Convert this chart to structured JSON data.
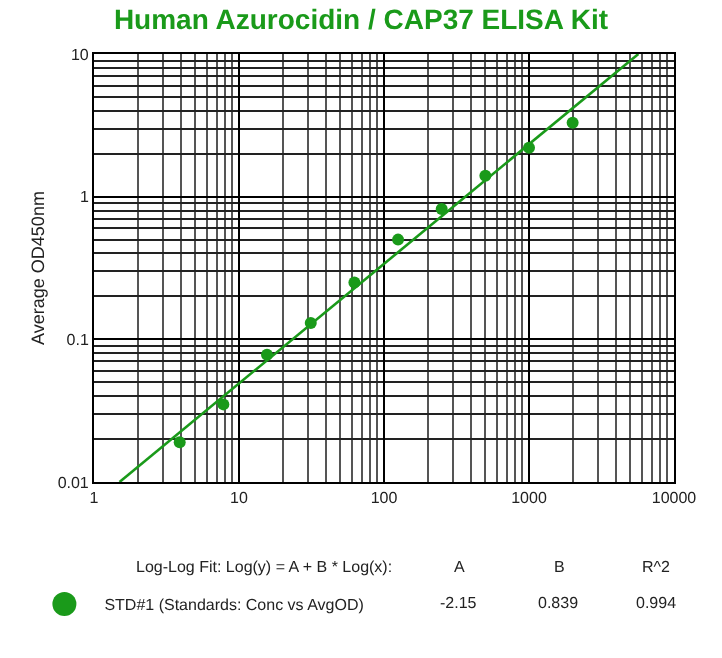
{
  "chart_data": {
    "type": "scatter",
    "title": "Human Azurocidin / CAP37 ELISA Kit",
    "ylabel": "Average OD450nm",
    "log": "xy",
    "grid": true,
    "legend": "bottom",
    "xlim": [
      1,
      10000
    ],
    "xticks": [
      1,
      10,
      100,
      1000,
      10000
    ],
    "ylim": [
      0.01,
      10
    ],
    "yticks": [
      0.01,
      0.1,
      1,
      10
    ],
    "series": [
      {
        "name": "STD#1 (Standards: Conc vs AvgOD)",
        "color": "#1a9a1a",
        "marker": "circle",
        "x": [
          3.9,
          7.8,
          15.6,
          31.25,
          62.5,
          125,
          250,
          500,
          1000,
          2000
        ],
        "values": [
          0.019,
          0.035,
          0.078,
          0.13,
          0.25,
          0.5,
          0.82,
          1.4,
          2.2,
          3.3
        ]
      },
      {
        "type": "line",
        "marker": "none",
        "color": "#1a9a1a",
        "x": [
          1.5,
          5680
        ],
        "values": [
          0.01,
          10
        ]
      }
    ],
    "annotations": [
      "Log-Log Fit: Log(y) = A + B * Log(x):",
      "A",
      "B",
      "R^2",
      "-2.15",
      "0.839",
      "0.994"
    ]
  }
}
